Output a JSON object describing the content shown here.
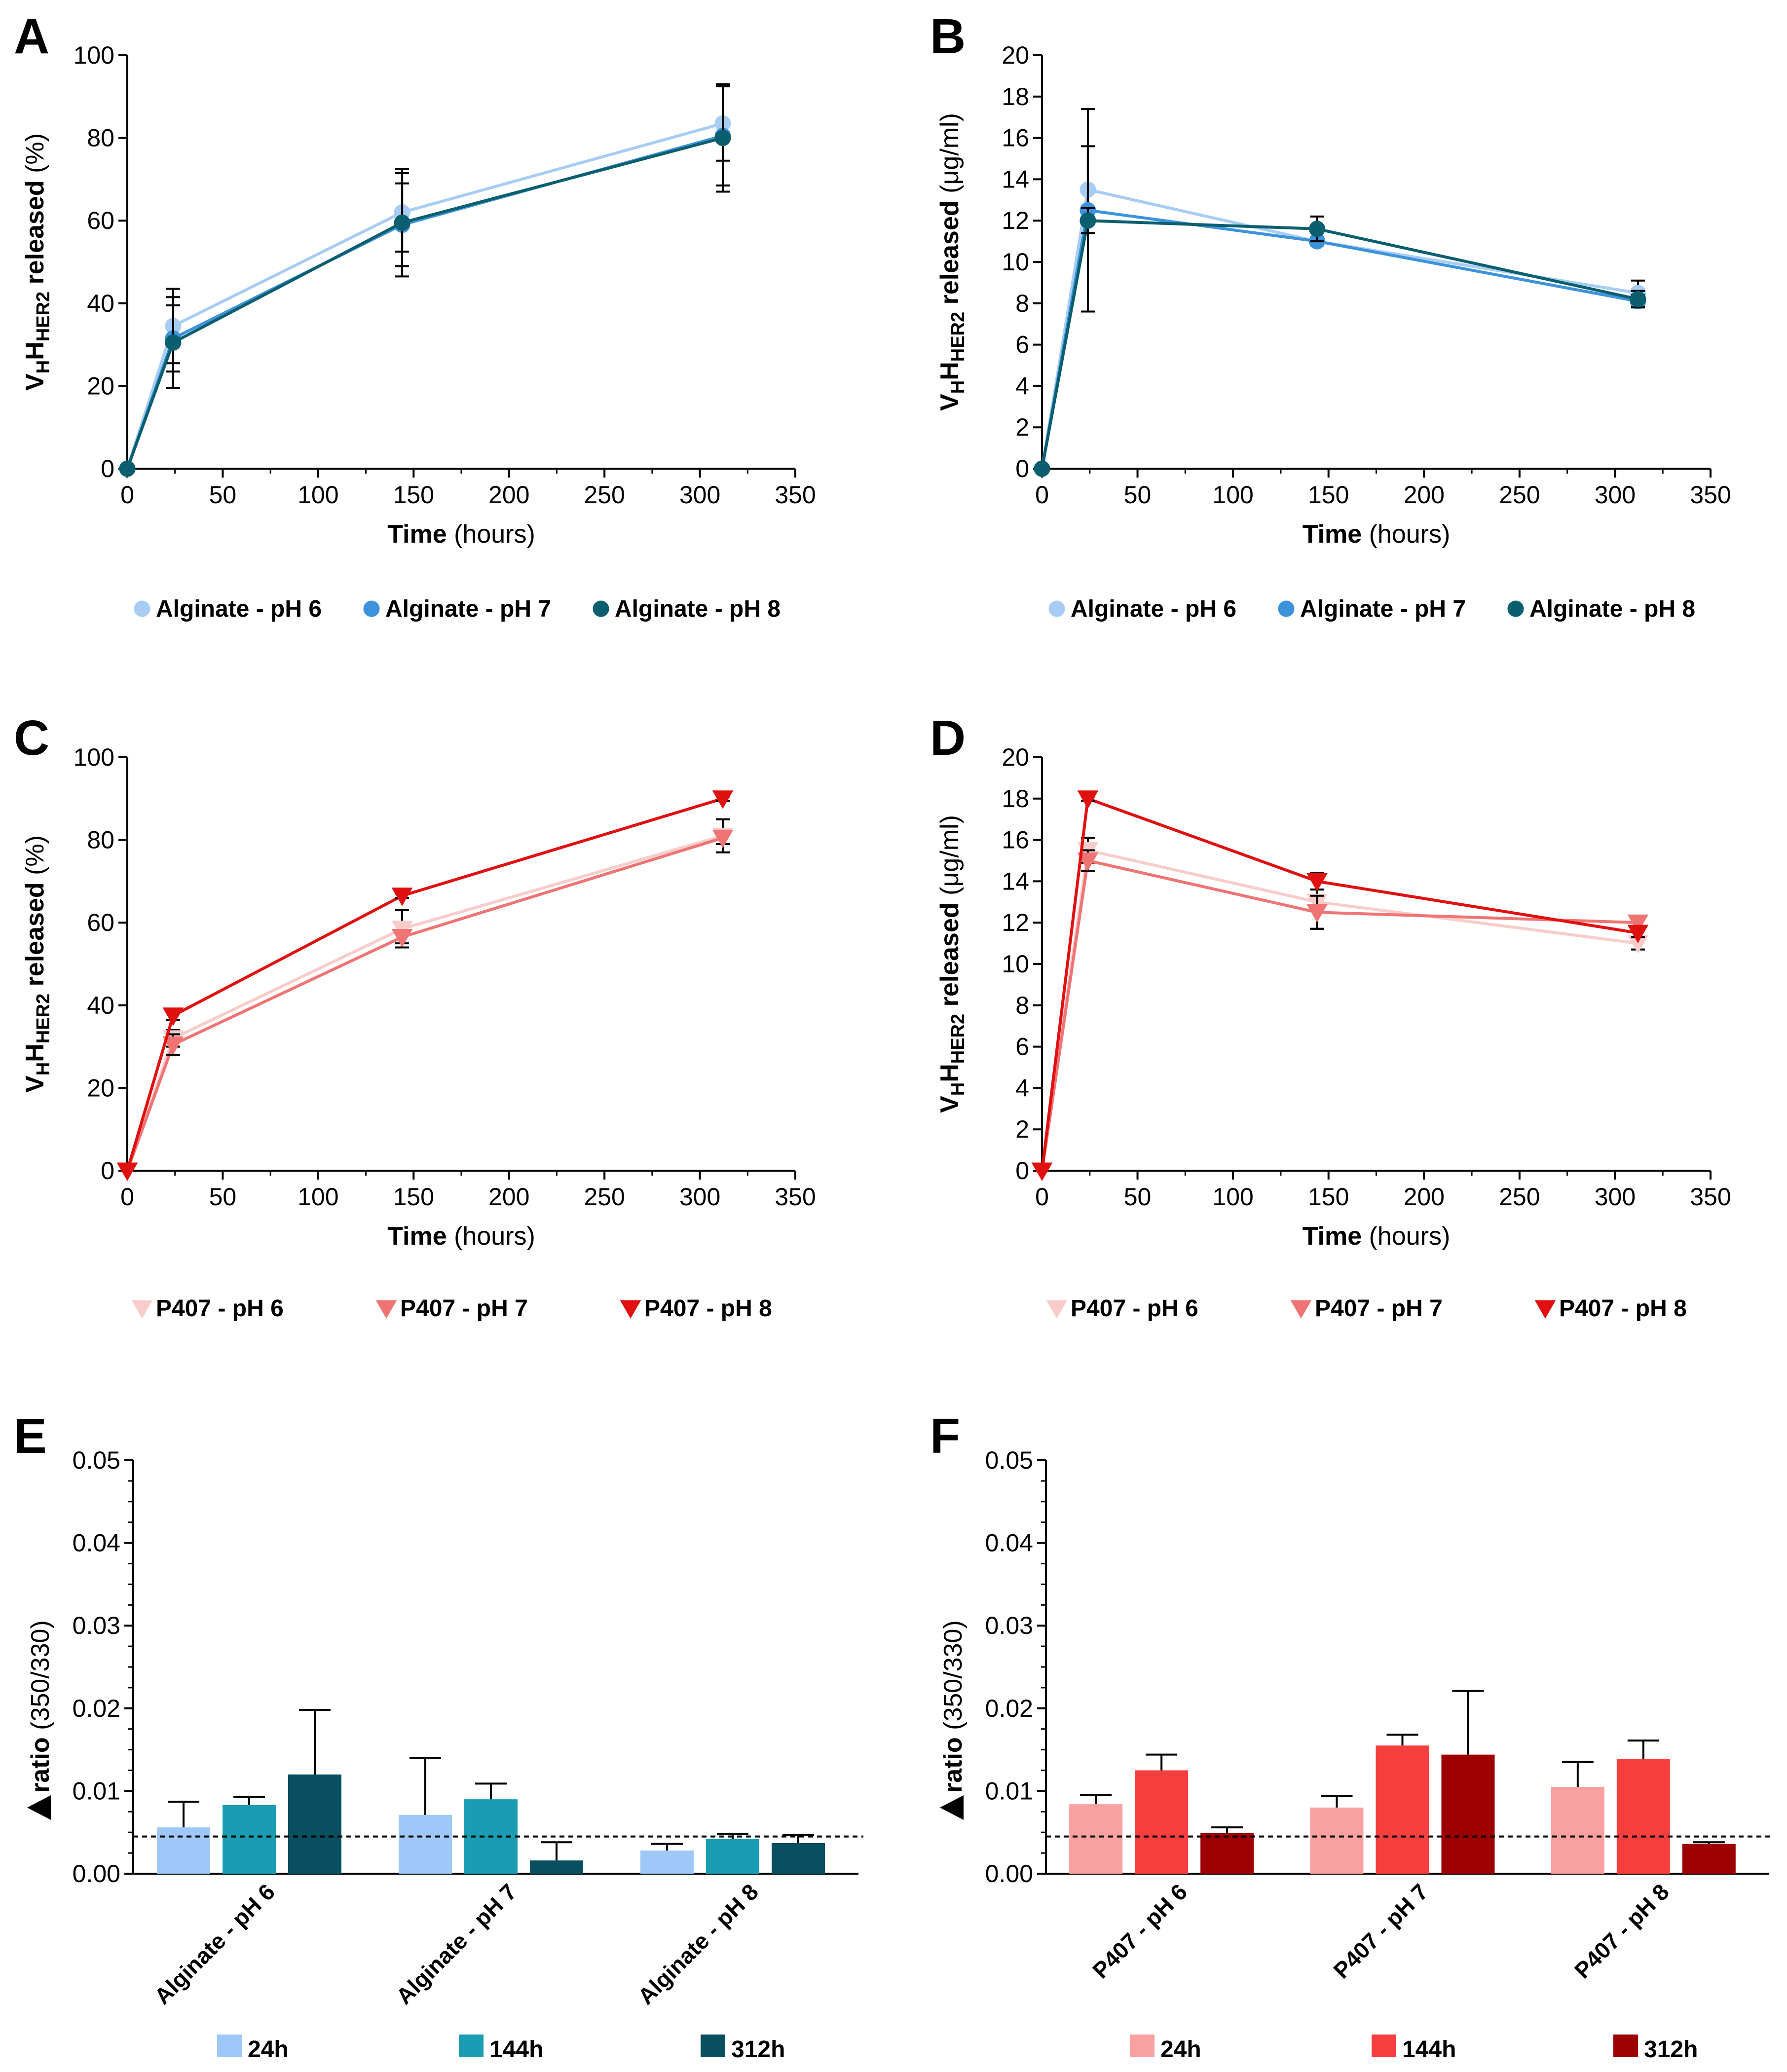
{
  "chart_data": [
    {
      "panel": "A",
      "type": "line",
      "xlabel_bold": "Time",
      "xlabel_rest": "(hours)",
      "ylabel": {
        "p1": "V",
        "s1": "H",
        "p2": "H",
        "s2": "HER2",
        "p3": " released ",
        "unit": "(%)"
      },
      "xlim": [
        0,
        350
      ],
      "xticks": [
        "0",
        "50",
        "100",
        "150",
        "200",
        "250",
        "300",
        "350"
      ],
      "ylim": [
        0,
        100
      ],
      "yticks": [
        "0",
        "20",
        "40",
        "60",
        "80",
        "100"
      ],
      "marker": "circle",
      "series": [
        {
          "name": "Alginate - pH 6",
          "color": "#a8cdf4",
          "x": [
            0,
            24,
            144,
            312
          ],
          "y": [
            0,
            34.5,
            62,
            83.5
          ],
          "err": [
            0,
            9,
            9.5,
            9
          ]
        },
        {
          "name": "Alginate - pH 7",
          "color": "#3d92dc",
          "x": [
            0,
            24,
            144,
            312
          ],
          "y": [
            0,
            31.5,
            59,
            80.5
          ],
          "err": [
            0,
            8,
            10,
            12
          ]
        },
        {
          "name": "Alginate - pH 8",
          "color": "#0a5e6e",
          "x": [
            0,
            24,
            144,
            312
          ],
          "y": [
            0,
            30.5,
            59.5,
            80
          ],
          "err": [
            0,
            11,
            13,
            13
          ]
        }
      ]
    },
    {
      "panel": "B",
      "type": "line",
      "xlabel_bold": "Time",
      "xlabel_rest": "(hours)",
      "ylabel": {
        "p1": "V",
        "s1": "H",
        "p2": "H",
        "s2": "HER2",
        "p3": " released ",
        "unit": "(μg/ml)"
      },
      "xlim": [
        0,
        350
      ],
      "xticks": [
        "0",
        "50",
        "100",
        "150",
        "200",
        "250",
        "300",
        "350"
      ],
      "ylim": [
        0,
        20
      ],
      "yticks": [
        "0",
        "2",
        "4",
        "6",
        "8",
        "10",
        "12",
        "14",
        "16",
        "18",
        "20"
      ],
      "marker": "circle",
      "series": [
        {
          "name": "Alginate - pH 6",
          "color": "#a8cdf4",
          "x": [
            0,
            24,
            144,
            312
          ],
          "y": [
            0,
            13.5,
            11,
            8.5
          ],
          "err": [
            0,
            2.1,
            0.2,
            0.6
          ]
        },
        {
          "name": "Alginate - pH 7",
          "color": "#3d92dc",
          "x": [
            0,
            24,
            144,
            312
          ],
          "y": [
            0,
            12.5,
            11,
            8.1
          ],
          "err": [
            0,
            4.9,
            0.2,
            0.3
          ]
        },
        {
          "name": "Alginate - pH 8",
          "color": "#0a5e6e",
          "x": [
            0,
            24,
            144,
            312
          ],
          "y": [
            0,
            12,
            11.6,
            8.2
          ],
          "err": [
            0,
            0.6,
            0.6,
            0.4
          ]
        }
      ]
    },
    {
      "panel": "C",
      "type": "line",
      "xlabel_bold": "Time",
      "xlabel_rest": "(hours)",
      "ylabel": {
        "p1": "V",
        "s1": "H",
        "p2": "H",
        "s2": "HER2",
        "p3": " released ",
        "unit": "(%)"
      },
      "xlim": [
        0,
        350
      ],
      "xticks": [
        "0",
        "50",
        "100",
        "150",
        "200",
        "250",
        "300",
        "350"
      ],
      "ylim": [
        0,
        100
      ],
      "yticks": [
        "0",
        "20",
        "40",
        "60",
        "80",
        "100"
      ],
      "marker": "triangle",
      "series": [
        {
          "name": "P407 - pH 6",
          "color": "#f9cccc",
          "x": [
            0,
            24,
            144,
            312
          ],
          "y": [
            0,
            32,
            58.5,
            81
          ],
          "err": [
            0,
            2,
            4.5,
            4
          ]
        },
        {
          "name": "P407 - pH 7",
          "color": "#f07474",
          "x": [
            0,
            24,
            144,
            312
          ],
          "y": [
            0,
            30.5,
            56.5,
            80.5
          ],
          "err": [
            0,
            2.5,
            1.5,
            1.5
          ]
        },
        {
          "name": "P407 - pH 8",
          "color": "#e01010",
          "x": [
            0,
            24,
            144,
            312
          ],
          "y": [
            0,
            37.5,
            66.5,
            90
          ],
          "err": [
            0,
            1,
            0.5,
            0.5
          ]
        }
      ]
    },
    {
      "panel": "D",
      "type": "line",
      "xlabel_bold": "Time",
      "xlabel_rest": "(hours)",
      "ylabel": {
        "p1": "V",
        "s1": "H",
        "p2": "H",
        "s2": "HER2",
        "p3": " released ",
        "unit": "(μg/ml)"
      },
      "xlim": [
        0,
        350
      ],
      "xticks": [
        "0",
        "50",
        "100",
        "150",
        "200",
        "250",
        "300",
        "350"
      ],
      "ylim": [
        0,
        20
      ],
      "yticks": [
        "0",
        "2",
        "4",
        "6",
        "8",
        "10",
        "12",
        "14",
        "16",
        "18",
        "20"
      ],
      "marker": "triangle",
      "series": [
        {
          "name": "P407 - pH 6",
          "color": "#f9cccc",
          "x": [
            0,
            24,
            144,
            312
          ],
          "y": [
            0,
            15.5,
            13,
            11
          ],
          "err": [
            0,
            0.6,
            1.3,
            0.3
          ]
        },
        {
          "name": "P407 - pH 7",
          "color": "#f07474",
          "x": [
            0,
            24,
            144,
            312
          ],
          "y": [
            0,
            15,
            12.5,
            12
          ],
          "err": [
            0,
            0.5,
            0.8,
            0.2
          ]
        },
        {
          "name": "P407 - pH 8",
          "color": "#e01010",
          "x": [
            0,
            24,
            144,
            312
          ],
          "y": [
            0,
            18,
            14,
            11.5
          ],
          "err": [
            0,
            0.1,
            0.4,
            0.2
          ]
        }
      ]
    },
    {
      "panel": "E",
      "type": "bar",
      "ylabel_bold": "ratio",
      "ylabel_rest": "(350/330)",
      "ylim": [
        0,
        0.05
      ],
      "yticks": [
        "0.00",
        "0.01",
        "0.02",
        "0.03",
        "0.04",
        "0.05"
      ],
      "threshold": 0.0045,
      "categories": [
        "Alginate - pH 6",
        "Alginate - pH 7",
        "Alginate - pH 8"
      ],
      "series": [
        {
          "name": "24h",
          "color": "#9dc8f8",
          "values": [
            0.0056,
            0.0071,
            0.0028
          ],
          "err": [
            0.0031,
            0.0069,
            0.0008
          ]
        },
        {
          "name": "144h",
          "color": "#1a9db2",
          "values": [
            0.0083,
            0.009,
            0.0042
          ],
          "err": [
            0.001,
            0.0019,
            0.0006
          ]
        },
        {
          "name": "312h",
          "color": "#0a4f5f",
          "values": [
            0.012,
            0.0016,
            0.0037
          ],
          "err": [
            0.0078,
            0.0022,
            0.001
          ]
        }
      ]
    },
    {
      "panel": "F",
      "type": "bar",
      "ylabel_bold": "ratio",
      "ylabel_rest": "(350/330)",
      "ylim": [
        0,
        0.05
      ],
      "yticks": [
        "0.00",
        "0.01",
        "0.02",
        "0.03",
        "0.04",
        "0.05"
      ],
      "threshold": 0.0045,
      "categories": [
        "P407 - pH 6",
        "P407 - pH 7",
        "P407 - pH 8"
      ],
      "series": [
        {
          "name": "24h",
          "color": "#f9a0a0",
          "values": [
            0.0084,
            0.008,
            0.0105
          ],
          "err": [
            0.0011,
            0.0014,
            0.003
          ]
        },
        {
          "name": "144h",
          "color": "#f53f3f",
          "values": [
            0.0125,
            0.0155,
            0.0139
          ],
          "err": [
            0.0019,
            0.0013,
            0.0022
          ]
        },
        {
          "name": "312h",
          "color": "#9c0000",
          "values": [
            0.0049,
            0.0144,
            0.0036
          ],
          "err": [
            0.0007,
            0.0077,
            0.0002
          ]
        }
      ]
    }
  ]
}
